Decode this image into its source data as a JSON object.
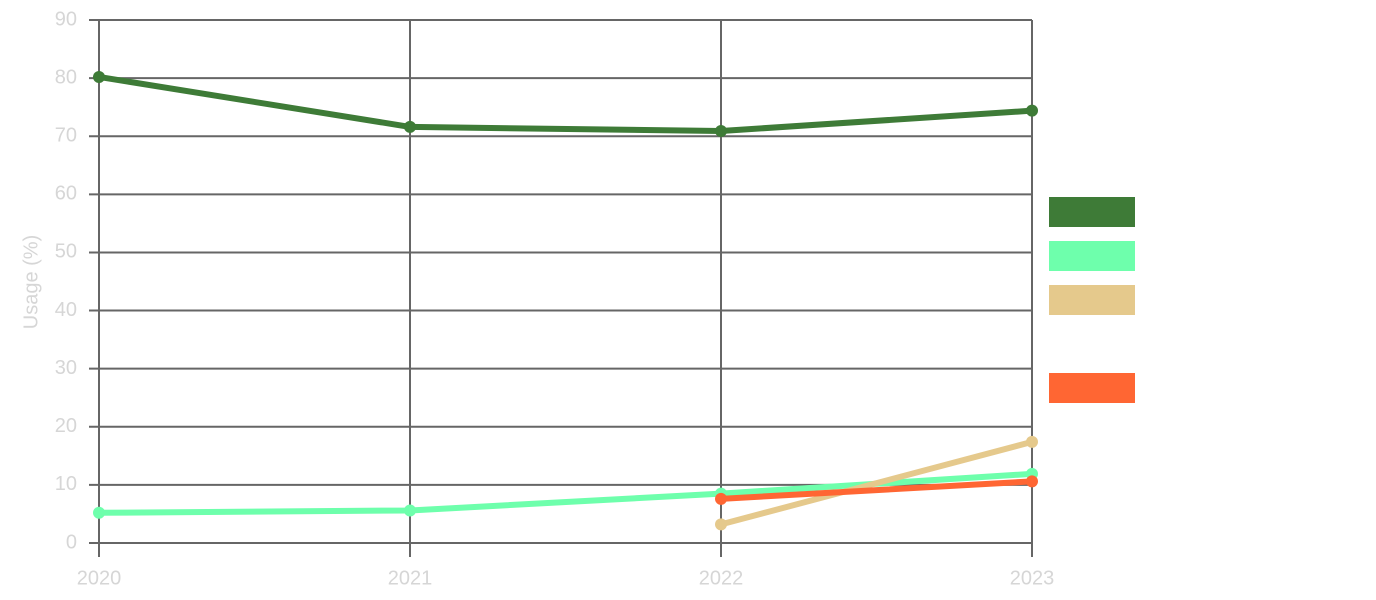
{
  "chart_data": {
    "type": "line",
    "title": "",
    "xlabel": "",
    "ylabel": "Usage (%)",
    "x": [
      "2020",
      "2021",
      "2022",
      "2023"
    ],
    "yticks": [
      "0",
      "10",
      "20",
      "30",
      "40",
      "50",
      "60",
      "70",
      "80",
      "90"
    ],
    "ylim": [
      0,
      90
    ],
    "grid": true,
    "legend_position": "right",
    "series": [
      {
        "color": "#3e7b37",
        "values": [
          80.2,
          71.6,
          70.9,
          74.4
        ]
      },
      {
        "color": "#6effac",
        "values": [
          5.2,
          5.6,
          8.5,
          11.9
        ]
      },
      {
        "color": "#e5c98c",
        "values": [
          null,
          null,
          3.2,
          17.4
        ]
      },
      {
        "color": "#ff6633",
        "values": [
          null,
          null,
          7.6,
          10.6
        ]
      }
    ]
  }
}
